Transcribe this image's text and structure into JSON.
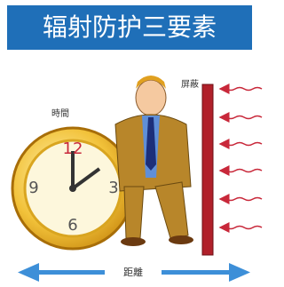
{
  "header": {
    "title": "辐射防护三要素"
  },
  "labels": {
    "time": "時間",
    "shielding": "屏蔽",
    "distance": "距離"
  },
  "clock": {
    "numerals": [
      "12",
      "3",
      "6",
      "9"
    ]
  }
}
